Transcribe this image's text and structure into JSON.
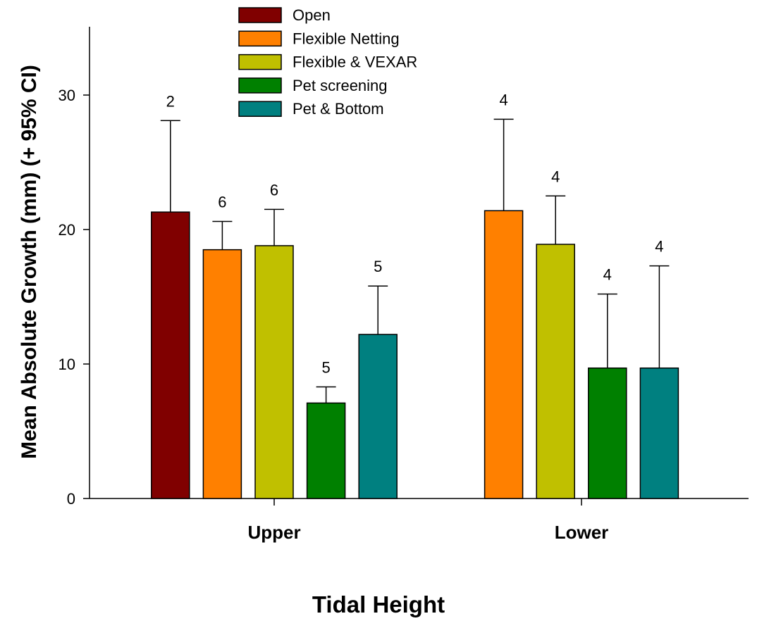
{
  "chart_data": {
    "type": "bar",
    "title": "",
    "xlabel": "Tidal Height",
    "ylabel": "Mean Absolute Growth (mm) (+ 95% CI)",
    "ylim": [
      0,
      35
    ],
    "yticks": [
      0,
      10,
      20,
      30
    ],
    "grid": false,
    "legend_position": "top-center",
    "categories": [
      "Upper",
      "Lower"
    ],
    "series": [
      {
        "name": "Open",
        "color": "#800000",
        "values": [
          21.3,
          null
        ],
        "ci_upper": [
          28.1,
          null
        ],
        "n": [
          "2",
          null
        ]
      },
      {
        "name": "Flexible Netting",
        "color": "#FF8000",
        "values": [
          18.5,
          21.4
        ],
        "ci_upper": [
          20.6,
          28.2
        ],
        "n": [
          "6",
          "4"
        ]
      },
      {
        "name": "Flexible & VEXAR",
        "color": "#C0C000",
        "values": [
          18.8,
          18.9
        ],
        "ci_upper": [
          21.5,
          22.5
        ],
        "n": [
          "6",
          "4"
        ]
      },
      {
        "name": "Pet screening",
        "color": "#008000",
        "values": [
          7.1,
          9.7
        ],
        "ci_upper": [
          8.3,
          15.2
        ],
        "n": [
          "5",
          "4"
        ]
      },
      {
        "name": "Pet & Bottom",
        "color": "#008080",
        "values": [
          12.2,
          9.7
        ],
        "ci_upper": [
          15.8,
          17.3
        ],
        "n": [
          "5",
          "4"
        ]
      }
    ]
  }
}
